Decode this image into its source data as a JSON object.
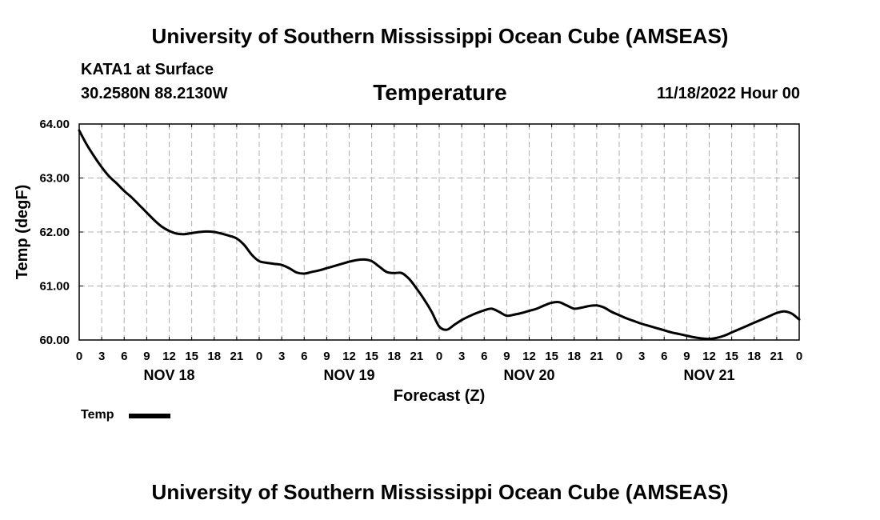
{
  "header": {
    "title": "University of Southern Mississippi Ocean Cube (AMSEAS)",
    "station": "KATA1 at Surface",
    "coords": "30.2580N  88.2130W",
    "variable": "Temperature",
    "datetime": "11/18/2022 Hour 00"
  },
  "footer": {
    "title": "University of Southern Mississippi Ocean Cube (AMSEAS)"
  },
  "legend": {
    "label": "Temp"
  },
  "chart_data": {
    "type": "line",
    "title": "Temperature",
    "xlabel": "Forecast (Z)",
    "ylabel": "Temp (degF)",
    "ylim": [
      60.0,
      64.0
    ],
    "yticks": [
      "60.00",
      "61.00",
      "62.00",
      "63.00",
      "64.00"
    ],
    "xlim": [
      0,
      96
    ],
    "x_tick_labels": [
      "0",
      "3",
      "6",
      "9",
      "12",
      "15",
      "18",
      "21",
      "0",
      "3",
      "6",
      "9",
      "12",
      "15",
      "18",
      "21",
      "0",
      "3",
      "6",
      "9",
      "12",
      "15",
      "18",
      "21",
      "0",
      "3",
      "6",
      "9",
      "12",
      "15",
      "18",
      "21",
      "0"
    ],
    "day_labels": [
      {
        "label": "NOV 18",
        "hour": 12
      },
      {
        "label": "NOV 19",
        "hour": 36
      },
      {
        "label": "NOV 20",
        "hour": 60
      },
      {
        "label": "NOV 21",
        "hour": 84
      }
    ],
    "grid": true,
    "legend_position": "bottom-left",
    "series": [
      {
        "name": "Temp",
        "color": "#000000",
        "x": [
          0,
          1,
          2,
          3,
          4,
          5,
          6,
          7,
          8,
          9,
          10,
          11,
          12,
          13,
          14,
          15,
          16,
          17,
          18,
          19,
          20,
          21,
          22,
          23,
          24,
          25,
          26,
          27,
          28,
          29,
          30,
          31,
          32,
          33,
          34,
          35,
          36,
          37,
          38,
          39,
          40,
          41,
          42,
          43,
          44,
          45,
          46,
          47,
          48,
          49,
          50,
          51,
          52,
          53,
          54,
          55,
          56,
          57,
          58,
          59,
          60,
          61,
          62,
          63,
          64,
          65,
          66,
          67,
          68,
          69,
          70,
          71,
          72,
          73,
          74,
          75,
          76,
          77,
          78,
          79,
          80,
          81,
          82,
          83,
          84,
          85,
          86,
          87,
          88,
          89,
          90,
          91,
          92,
          93,
          94,
          95,
          96
        ],
        "values": [
          63.88,
          63.62,
          63.4,
          63.2,
          63.03,
          62.9,
          62.76,
          62.64,
          62.5,
          62.36,
          62.22,
          62.1,
          62.02,
          61.97,
          61.96,
          61.98,
          62.0,
          62.01,
          62.0,
          61.97,
          61.93,
          61.88,
          61.76,
          61.58,
          61.46,
          61.43,
          61.41,
          61.39,
          61.33,
          61.25,
          61.23,
          61.26,
          61.29,
          61.33,
          61.37,
          61.41,
          61.45,
          61.48,
          61.49,
          61.46,
          61.36,
          61.26,
          61.24,
          61.24,
          61.13,
          60.95,
          60.75,
          60.52,
          60.25,
          60.19,
          60.28,
          60.37,
          60.44,
          60.5,
          60.55,
          60.58,
          60.52,
          60.45,
          60.47,
          60.5,
          60.54,
          60.58,
          60.64,
          60.69,
          60.7,
          60.64,
          60.58,
          60.6,
          60.63,
          60.64,
          60.6,
          60.52,
          60.46,
          60.4,
          60.35,
          60.3,
          60.26,
          60.22,
          60.18,
          60.14,
          60.11,
          60.08,
          60.05,
          60.03,
          60.02,
          60.04,
          60.08,
          60.14,
          60.2,
          60.26,
          60.32,
          60.38,
          60.44,
          60.5,
          60.53,
          60.49,
          60.38
        ]
      }
    ]
  }
}
